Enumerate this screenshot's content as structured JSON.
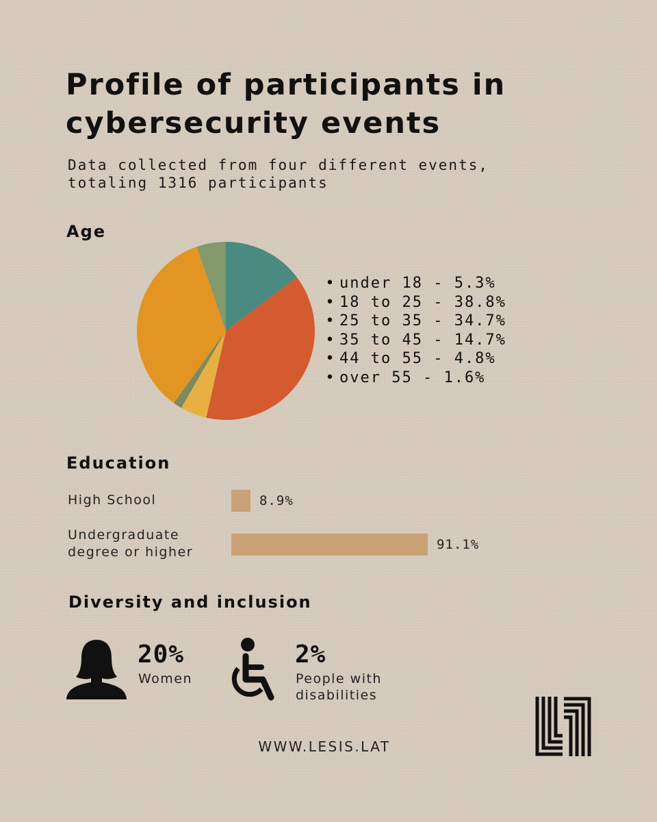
{
  "title": "Profile of participants in cybersecurity events",
  "subtitle": "Data collected from four different events, totaling 1316 participants",
  "sections": {
    "age": "Age",
    "education": "Education",
    "diversity": "Diversity and inclusion"
  },
  "chart_data": [
    {
      "type": "pie",
      "title": "Age",
      "categories": [
        "under 18",
        "18 to 25",
        "25 to 35",
        "35 to 45",
        "44 to 55",
        "over 55"
      ],
      "values": [
        5.3,
        38.8,
        34.7,
        14.7,
        4.8,
        1.6
      ],
      "legend": [
        "under 18 - 5.3%",
        "18 to 25 - 38.8%",
        "25 to 35 - 34.7%",
        "35 to 45 - 14.7%",
        "44 to 55 - 4.8%",
        "over 55 - 1.6%"
      ],
      "slices_clockwise_from_top": [
        {
          "category": "35 to 45",
          "value": 14.7,
          "color": "#4a8a80"
        },
        {
          "category": "18 to 25",
          "value": 38.8,
          "color": "#d45a30"
        },
        {
          "category": "44 to 55",
          "value": 4.8,
          "color": "#e8b042"
        },
        {
          "category": "over 55",
          "value": 1.6,
          "color": "#7c8a60"
        },
        {
          "category": "25 to 35",
          "value": 34.7,
          "color": "#e29522"
        },
        {
          "category": "under 18",
          "value": 5.3,
          "color": "#839a6c"
        }
      ],
      "legend_placement": "right"
    },
    {
      "type": "bar",
      "title": "Education",
      "orientation": "horizontal",
      "categories": [
        "High School",
        "Undergraduate degree or higher"
      ],
      "values": [
        8.9,
        91.1
      ],
      "value_labels": [
        "8.9%",
        "91.1%"
      ],
      "color": "#c8a276"
    }
  ],
  "diversity": {
    "women": {
      "value": "20%",
      "label": "Women",
      "icon": "woman-silhouette-icon"
    },
    "disabilities": {
      "value": "2%",
      "label": "People with disabilities",
      "icon": "wheelchair-icon"
    }
  },
  "website": "WWW.LESIS.LAT",
  "logo_icon": "lesis-logo-icon"
}
